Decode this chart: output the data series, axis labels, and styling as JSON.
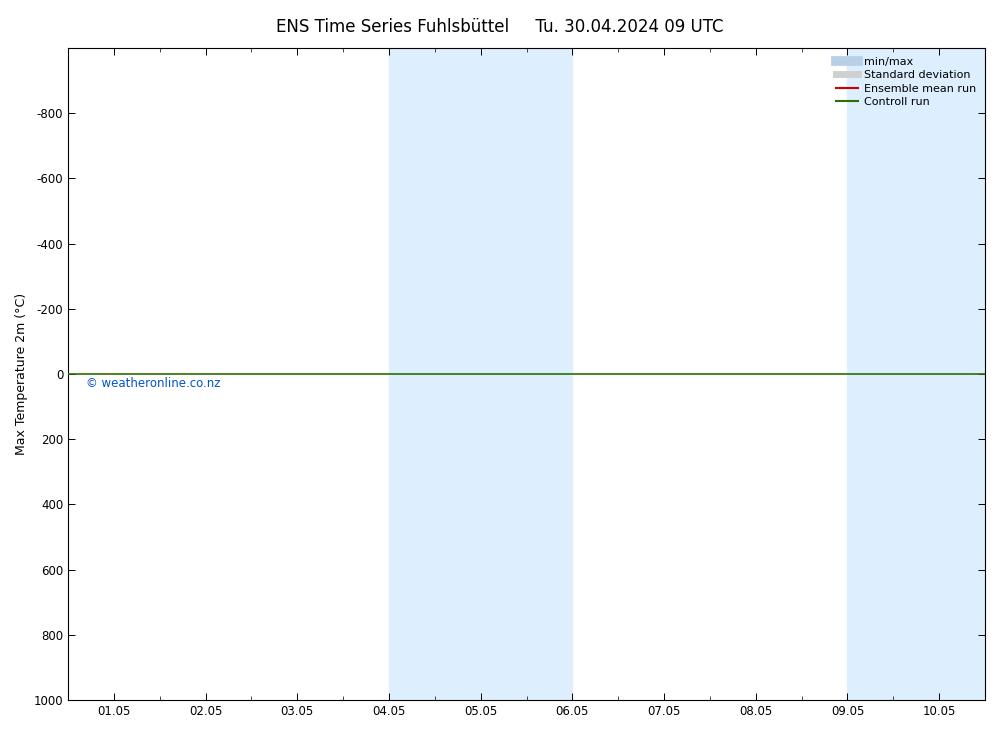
{
  "title_left": "ENS Time Series Fuhlsbüttel",
  "title_right": "Tu. 30.04.2024 09 UTC",
  "ylabel": "Max Temperature 2m (°C)",
  "ylim_bottom": 1000,
  "ylim_top": -1000,
  "yticks": [
    -800,
    -600,
    -400,
    -200,
    0,
    200,
    400,
    600,
    800,
    1000
  ],
  "xtick_labels": [
    "01.05",
    "02.05",
    "03.05",
    "04.05",
    "05.05",
    "06.05",
    "07.05",
    "08.05",
    "09.05",
    "10.05"
  ],
  "xtick_positions": [
    0,
    1,
    2,
    3,
    4,
    5,
    6,
    7,
    8,
    9
  ],
  "xlim_left": -0.5,
  "xlim_right": 9.5,
  "shaded_regions": [
    {
      "x_start": 3.0,
      "x_end": 5.0
    },
    {
      "x_start": 8.0,
      "x_end": 9.5
    }
  ],
  "shaded_color": "#ddeeff",
  "background_color": "#ffffff",
  "zero_line_color": "#2d6e00",
  "copyright_text": "© weatheronline.co.nz",
  "legend_items": [
    {
      "label": "min/max",
      "color": "#b8cfe8",
      "lw": 7
    },
    {
      "label": "Standard deviation",
      "color": "#d0d0d0",
      "lw": 5
    },
    {
      "label": "Ensemble mean run",
      "color": "#cc0000",
      "lw": 1.5
    },
    {
      "label": "Controll run",
      "color": "#2d6e00",
      "lw": 1.5
    }
  ],
  "title_fontsize": 12,
  "axis_fontsize": 9,
  "tick_fontsize": 8.5,
  "legend_fontsize": 8
}
